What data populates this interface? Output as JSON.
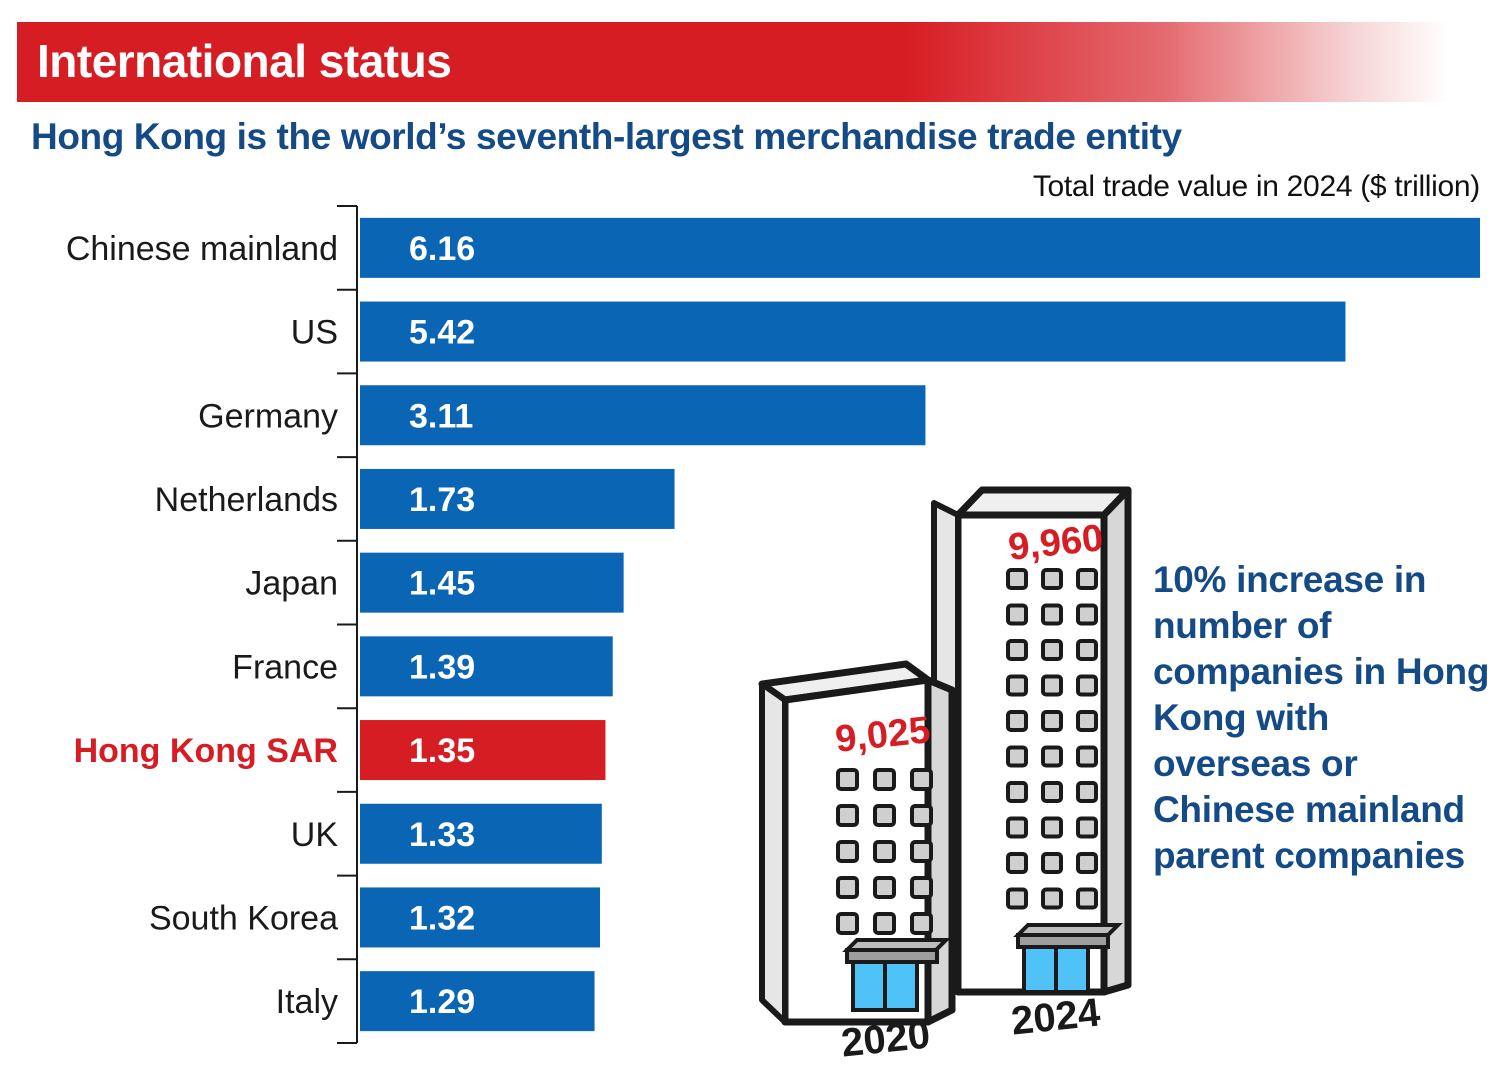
{
  "header": {
    "title": "International status"
  },
  "chart_data": {
    "type": "bar",
    "orientation": "horizontal",
    "title": "Hong Kong is the world’s seventh-largest merchandise trade entity",
    "unit_label": "Total trade value in 2024 ($ trillion)",
    "categories": [
      "Chinese mainland",
      "US",
      "Germany",
      "Netherlands",
      "Japan",
      "France",
      "Hong Kong SAR",
      "UK",
      "South Korea",
      "Italy"
    ],
    "values": [
      6.16,
      5.42,
      3.11,
      1.73,
      1.45,
      1.39,
      1.35,
      1.33,
      1.32,
      1.29
    ],
    "value_labels": [
      "6.16",
      "5.42",
      "3.11",
      "1.73",
      "1.45",
      "1.39",
      "1.35",
      "1.33",
      "1.32",
      "1.29"
    ],
    "highlight_index": 6,
    "colors": {
      "bar": "#0a66b4",
      "highlight": "#d71d24",
      "label": "#1a1a1a",
      "highlight_label": "#d71d24",
      "value_text": "#ffffff"
    }
  },
  "infographic": {
    "buildings": [
      {
        "year": "2020",
        "count": "9,025"
      },
      {
        "year": "2024",
        "count": "9,960"
      }
    ],
    "callout": "10% increase in number of companies in Hong Kong with overseas or Chinese mainland parent companies",
    "colors": {
      "count_text": "#d71d24",
      "building_front": "#ffffff",
      "building_side": "#d7d7d7",
      "window": "#cfcfcf",
      "door_glass": "#4fc3f7",
      "outline": "#1a1a1a"
    }
  }
}
